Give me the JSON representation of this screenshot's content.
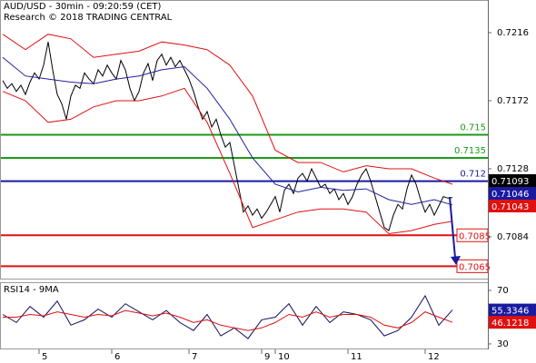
{
  "chart_data": [
    {
      "type": "line",
      "title": "AUD/USD - 30min - 09:20:59 (CET)",
      "subtitle": "Research © 2018 TRADING CENTRAL",
      "xlim": [
        -0.6,
        106.8
      ],
      "ylim": [
        0.70564,
        0.72371
      ],
      "yticks": [
        0.7216,
        0.7172,
        0.7128,
        0.7084
      ],
      "series": [
        {
          "color": "#000000",
          "values": [
            0.7185,
            0.718,
            0.7183,
            0.7178,
            0.7182,
            0.7176,
            0.7184,
            0.719,
            0.7186,
            0.7195,
            0.721,
            0.7192,
            0.7176,
            0.717,
            0.716,
            0.7175,
            0.7182,
            0.718,
            0.719,
            0.7186,
            0.7183,
            0.7192,
            0.7188,
            0.7195,
            0.719,
            0.7186,
            0.7198,
            0.7192,
            0.718,
            0.7172,
            0.7178,
            0.719,
            0.7196,
            0.7185,
            0.7198,
            0.7202,
            0.7195,
            0.72,
            0.7194,
            0.7198,
            0.7192,
            0.7186,
            0.7178,
            0.7168,
            0.716,
            0.7165,
            0.7155,
            0.716,
            0.715,
            0.7142,
            0.7145,
            0.713,
            0.7115,
            0.71,
            0.7104,
            0.7098,
            0.7102,
            0.7096,
            0.71,
            0.7105,
            0.711,
            0.71,
            0.7114,
            0.7118,
            0.7112,
            0.7122,
            0.7125,
            0.712,
            0.7128,
            0.7122,
            0.7116,
            0.7118,
            0.7112,
            0.7115,
            0.7108,
            0.7112,
            0.7105,
            0.711,
            0.7118,
            0.7124,
            0.7128,
            0.712,
            0.711,
            0.71,
            0.709,
            0.7088,
            0.7098,
            0.7105,
            0.7102,
            0.7115,
            0.7124,
            0.7118,
            0.7108,
            0.71,
            0.7105,
            0.7098,
            0.7104,
            0.711,
            0.7109,
            0.71093
          ]
        },
        {
          "color": "#e01010",
          "x": [
            0,
            5,
            10,
            15,
            20,
            25,
            30,
            35,
            40,
            45,
            50,
            55,
            60,
            65,
            70,
            75,
            80,
            85,
            90,
            95,
            99
          ],
          "values": [
            0.7215,
            0.7205,
            0.7215,
            0.7212,
            0.72,
            0.7202,
            0.7204,
            0.721,
            0.7208,
            0.7205,
            0.7195,
            0.7175,
            0.714,
            0.7132,
            0.7132,
            0.7126,
            0.713,
            0.7128,
            0.7128,
            0.7122,
            0.7118
          ]
        },
        {
          "color": "#2020a0",
          "x": [
            0,
            5,
            10,
            15,
            20,
            25,
            30,
            35,
            40,
            45,
            50,
            55,
            60,
            65,
            70,
            75,
            80,
            85,
            90,
            95,
            99
          ],
          "values": [
            0.72,
            0.7188,
            0.7186,
            0.7184,
            0.7183,
            0.7186,
            0.7188,
            0.7192,
            0.7194,
            0.718,
            0.716,
            0.7135,
            0.7118,
            0.7113,
            0.7116,
            0.7114,
            0.7115,
            0.7108,
            0.7105,
            0.7108,
            0.71046
          ]
        },
        {
          "color": "#e01010",
          "x": [
            0,
            5,
            10,
            15,
            20,
            25,
            30,
            35,
            40,
            45,
            50,
            55,
            60,
            65,
            70,
            75,
            80,
            85,
            90,
            95,
            99
          ],
          "values": [
            0.7178,
            0.7172,
            0.7158,
            0.716,
            0.7168,
            0.7172,
            0.7172,
            0.7175,
            0.718,
            0.7158,
            0.7125,
            0.709,
            0.7095,
            0.71,
            0.7102,
            0.7102,
            0.71,
            0.7086,
            0.7088,
            0.7092,
            0.7094
          ]
        }
      ],
      "levels": [
        {
          "value": 0.715,
          "color": "#1a9a1a"
        },
        {
          "value": 0.7135,
          "color": "#1a9a1a"
        },
        {
          "value": 0.712,
          "color": "#1a1aa0"
        },
        {
          "value": 0.7085,
          "color": "#e01010"
        },
        {
          "value": 0.7065,
          "color": "#e01010"
        }
      ],
      "price_labels": [
        {
          "value": 0.71093,
          "color": "#000000"
        },
        {
          "value": 0.71046,
          "color": "#1a1aa0"
        },
        {
          "value": 0.71043,
          "color": "#e01010"
        }
      ]
    },
    {
      "type": "line",
      "title": "RSI14 - 9MA",
      "xlim": [
        -0.6,
        106.8
      ],
      "ylim": [
        25.9,
        75.4
      ],
      "yticks": [
        70,
        30
      ],
      "xticks": [
        {
          "value": 8,
          "label": "5"
        },
        {
          "value": 24,
          "label": "6"
        },
        {
          "value": 41,
          "label": "7"
        },
        {
          "value": 57,
          "label": "9"
        },
        {
          "value": 60,
          "label": "10"
        },
        {
          "value": 76,
          "label": "11"
        },
        {
          "value": 93,
          "label": "12"
        }
      ],
      "x": [
        0,
        3,
        6,
        9,
        12,
        15,
        18,
        21,
        24,
        27,
        30,
        33,
        36,
        39,
        42,
        45,
        48,
        51,
        54,
        57,
        60,
        63,
        66,
        69,
        72,
        75,
        78,
        81,
        84,
        87,
        90,
        93,
        96,
        99
      ],
      "series": [
        {
          "color": "#101060",
          "values": [
            52,
            46,
            58,
            50,
            62,
            44,
            48,
            56,
            50,
            60,
            54,
            48,
            55,
            46,
            40,
            52,
            36,
            42,
            34,
            48,
            50,
            60,
            44,
            58,
            46,
            54,
            52,
            48,
            36,
            40,
            50,
            66,
            44,
            55.3346
          ]
        },
        {
          "color": "#e01010",
          "values": [
            50,
            50,
            52,
            51,
            54,
            52,
            50,
            52,
            51,
            55,
            53,
            51,
            53,
            50,
            46,
            48,
            44,
            42,
            40,
            42,
            46,
            52,
            50,
            54,
            50,
            52,
            52,
            50,
            44,
            42,
            46,
            54,
            50,
            46.1218
          ]
        }
      ],
      "price_labels": [
        {
          "value": 55.3346,
          "color": "#1a1aa0"
        },
        {
          "value": 46.1218,
          "color": "#e01010"
        }
      ]
    }
  ]
}
